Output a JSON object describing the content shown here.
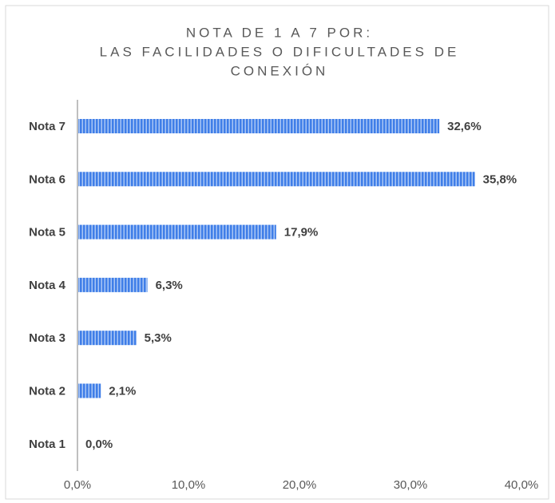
{
  "chart_data": {
    "type": "bar",
    "orientation": "horizontal",
    "title": [
      "NOTA DE 1 A 7 POR:",
      "LAS FACILIDADES O DIFICULTADES DE",
      "CONEXIÓN"
    ],
    "categories": [
      "Nota 7",
      "Nota 6",
      "Nota 5",
      "Nota 4",
      "Nota 3",
      "Nota 2",
      "Nota 1"
    ],
    "values": [
      32.6,
      35.8,
      17.9,
      6.3,
      5.3,
      2.1,
      0.0
    ],
    "value_labels": [
      "32,6%",
      "35,8%",
      "17,9%",
      "6,3%",
      "5,3%",
      "2,1%",
      "0,0%"
    ],
    "color": "#3f7ee8",
    "xlim": [
      0,
      40
    ],
    "xticks": [
      {
        "value": 0,
        "label": "0,0%"
      },
      {
        "value": 10,
        "label": "10,0%"
      },
      {
        "value": 20,
        "label": "20,0%"
      },
      {
        "value": 30,
        "label": "30,0%"
      },
      {
        "value": 40,
        "label": "40,0%"
      }
    ],
    "grid": false
  }
}
